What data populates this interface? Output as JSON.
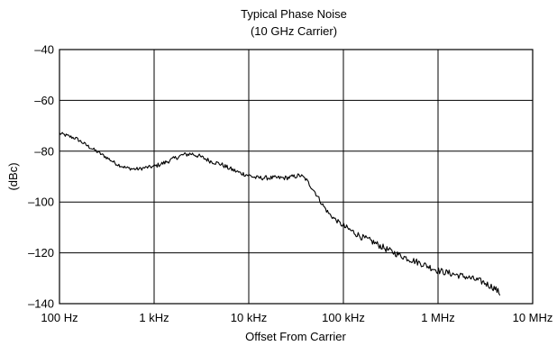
{
  "chart_data": {
    "type": "line",
    "title": "Typical Phase Noise",
    "subtitle": "(10 GHz Carrier)",
    "xlabel": "Offset From Carrier",
    "ylabel": "(dBc)",
    "x_scale": "log",
    "xlim": [
      100,
      10000000
    ],
    "ylim": [
      -140,
      -40
    ],
    "x_ticks": [
      {
        "value": 100,
        "label": "100 Hz"
      },
      {
        "value": 1000,
        "label": "1 kHz"
      },
      {
        "value": 10000,
        "label": "10 kHz"
      },
      {
        "value": 100000,
        "label": "100 kHz"
      },
      {
        "value": 1000000,
        "label": "1 MHz"
      },
      {
        "value": 10000000,
        "label": "10 MHz"
      }
    ],
    "y_ticks": [
      {
        "value": -40,
        "label": "–40"
      },
      {
        "value": -60,
        "label": "–60"
      },
      {
        "value": -80,
        "label": "–80"
      },
      {
        "value": -100,
        "label": "–100"
      },
      {
        "value": -120,
        "label": "–120"
      },
      {
        "value": -140,
        "label": "–140"
      }
    ],
    "grid": true,
    "legend": "none",
    "series": [
      {
        "x": [
          100,
          150,
          200,
          300,
          400,
          500,
          600,
          700,
          800,
          1000,
          1300,
          1600,
          2000,
          2500,
          3000,
          4000,
          5000,
          6000,
          8000,
          10000,
          12000,
          15000,
          20000,
          25000,
          30000,
          35000,
          40000,
          50000,
          60000,
          70000,
          80000,
          100000,
          130000,
          160000,
          200000,
          300000,
          400000,
          500000,
          700000,
          1000000,
          1500000,
          2000000,
          3000000,
          4000000,
          4500000
        ],
        "y": [
          -73,
          -75,
          -78,
          -82,
          -85,
          -86.5,
          -87,
          -87,
          -86.5,
          -86,
          -84.5,
          -83,
          -81.5,
          -81,
          -82,
          -84,
          -85,
          -86.5,
          -88.5,
          -89.5,
          -90.5,
          -90.5,
          -90.5,
          -90.5,
          -90,
          -89.5,
          -91,
          -96,
          -101,
          -104.5,
          -106.5,
          -109.5,
          -112,
          -114,
          -115.5,
          -119,
          -121,
          -122.5,
          -124.5,
          -127,
          -128.5,
          -129.5,
          -131.5,
          -134,
          -136
        ]
      }
    ]
  }
}
